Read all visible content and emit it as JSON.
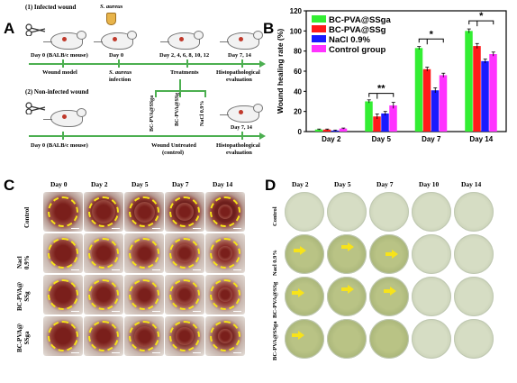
{
  "panels": {
    "a": "A",
    "b": "B",
    "c": "C",
    "d": "D"
  },
  "panel_a": {
    "infected_title": "(1) Infected wound",
    "noninfected_title": "(2) Non-infected wound",
    "s_aureus": "S. aureus",
    "day0_mouse": "Day 0 (BALB/c mouse)",
    "day0": "Day 0",
    "days_treat": "Day 2, 4, 6, 8, 10, 12",
    "day7_14": "Day 7, 14",
    "wound_model": "Wound model",
    "s_aureus_infection": "S. aureus",
    "infection_word": "infection",
    "treatments": "Treatments",
    "histo1": "Histopathological",
    "eval1": "evaluation",
    "tubes": [
      "BC-PVA@SSga",
      "BC-PVA@SSg",
      "NaCl 0.9%"
    ],
    "day0_mouse_2": "Day 0 (BALB/c mouse)",
    "wound_untreated": "Wound Untreated",
    "control": "(control)",
    "day7_14_b": "Day 7, 14",
    "histo2": "Histopathological",
    "eval2": "evaluation"
  },
  "chart_data": {
    "type": "bar",
    "categories": [
      "Day 2",
      "Day 5",
      "Day 7",
      "Day 14"
    ],
    "series": [
      {
        "name": "BC-PVA@SSga",
        "color": "#33ee33",
        "values": [
          2,
          30,
          83,
          100
        ],
        "errors": [
          0.5,
          1.5,
          1.5,
          2
        ]
      },
      {
        "name": "BC-PVA@SSg",
        "color": "#ff1a1a",
        "values": [
          2,
          15,
          62,
          85
        ],
        "errors": [
          0.5,
          2.5,
          2,
          2.5
        ]
      },
      {
        "name": "NaCl 0.9%",
        "color": "#1a1aff",
        "values": [
          1,
          18,
          41,
          70
        ],
        "errors": [
          0.5,
          2,
          2.5,
          2
        ]
      },
      {
        "name": "Control group",
        "color": "#ff33ff",
        "values": [
          3,
          26,
          56,
          77
        ],
        "errors": [
          0.5,
          3,
          2,
          2
        ]
      }
    ],
    "ylabel": "Wound healing rate (%)",
    "ylim": [
      0,
      120
    ],
    "yticks": [
      0,
      20,
      40,
      60,
      80,
      100,
      120
    ],
    "significance": [
      "**",
      "*",
      "*"
    ],
    "legend_position": "top-left"
  },
  "panel_c": {
    "columns": [
      "Day 0",
      "Day 2",
      "Day 5",
      "Day 7",
      "Day 14"
    ],
    "rows": [
      "Control",
      "Nacl 0.9%",
      "BC-PVA@ SSg",
      "BC-PVA@ SSga"
    ]
  },
  "panel_d": {
    "columns": [
      "Day 2",
      "Day 5",
      "Day 7",
      "Day 10",
      "Day 14"
    ],
    "rows": [
      "Control",
      "Nacl 0.9%",
      "BC-PVA@SSg",
      "BC-PVA@SSga"
    ]
  }
}
